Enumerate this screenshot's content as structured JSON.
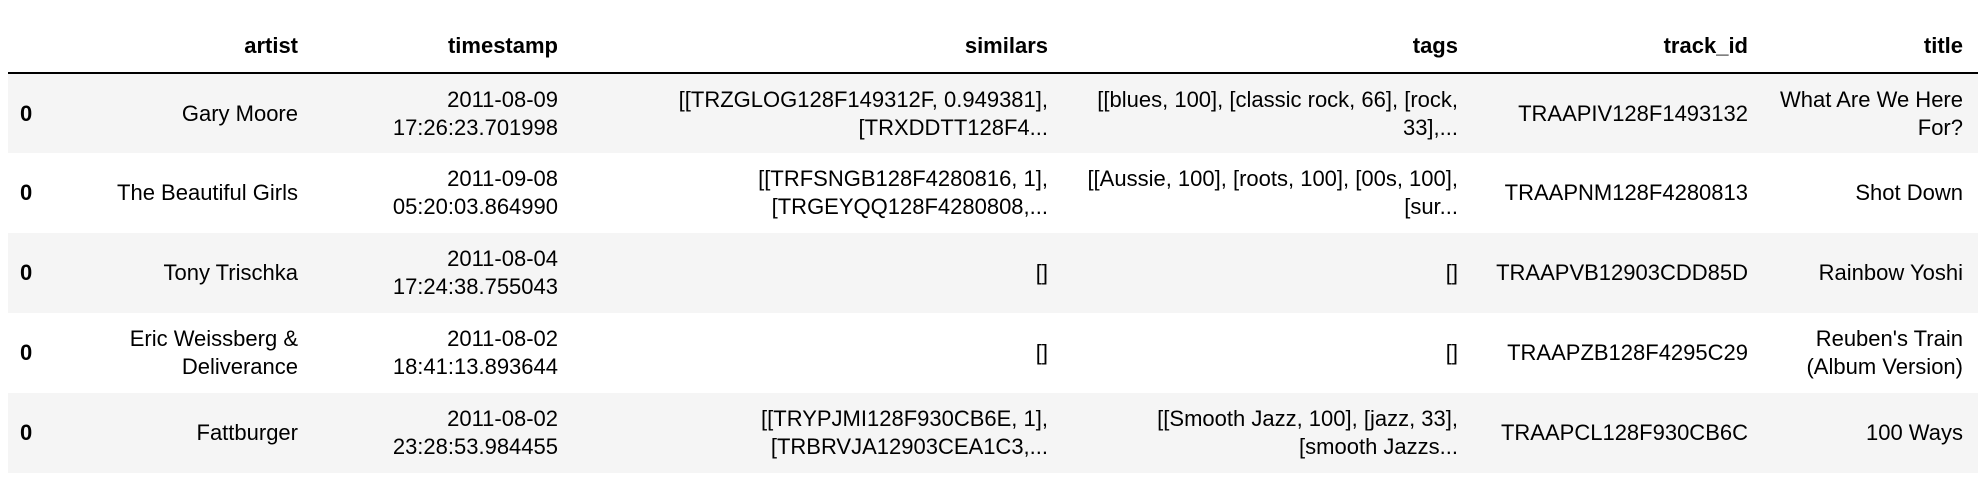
{
  "columns": [
    "",
    "artist",
    "timestamp",
    "similars",
    "tags",
    "track_id",
    "title"
  ],
  "rows": [
    {
      "index": "0",
      "artist": "Gary Moore",
      "timestamp": "2011-08-09 17:26:23.701998",
      "similars": "[[TRZGLOG128F149312F, 0.949381], [TRXDDTT128F4...",
      "tags": "[[blues, 100], [classic rock, 66], [rock, 33],...",
      "track_id": "TRAAPIV128F1493132",
      "title": "What Are We Here For?"
    },
    {
      "index": "0",
      "artist": "The Beautiful Girls",
      "timestamp": "2011-09-08 05:20:03.864990",
      "similars": "[[TRFSNGB128F4280816, 1], [TRGEYQQ128F4280808,...",
      "tags": "[[Aussie, 100], [roots, 100], [00s, 100], [sur...",
      "track_id": "TRAAPNM128F4280813",
      "title": "Shot Down"
    },
    {
      "index": "0",
      "artist": "Tony Trischka",
      "timestamp": "2011-08-04 17:24:38.755043",
      "similars": "[]",
      "tags": "[]",
      "track_id": "TRAAPVB12903CDD85D",
      "title": "Rainbow Yoshi"
    },
    {
      "index": "0",
      "artist": "Eric Weissberg & Deliverance",
      "timestamp": "2011-08-02 18:41:13.893644",
      "similars": "[]",
      "tags": "[]",
      "track_id": "TRAAPZB128F4295C29",
      "title": "Reuben's Train (Album Version)"
    },
    {
      "index": "0",
      "artist": "Fattburger",
      "timestamp": "2011-08-02 23:28:53.984455",
      "similars": "[[TRYPJMI128F930CB6E, 1], [TRBRVJA12903CEA1C3,...",
      "tags": "[[Smooth Jazz, 100], [jazz, 33], [smooth Jazzs...",
      "track_id": "TRAAPCL128F930CB6C",
      "title": "100 Ways"
    }
  ]
}
